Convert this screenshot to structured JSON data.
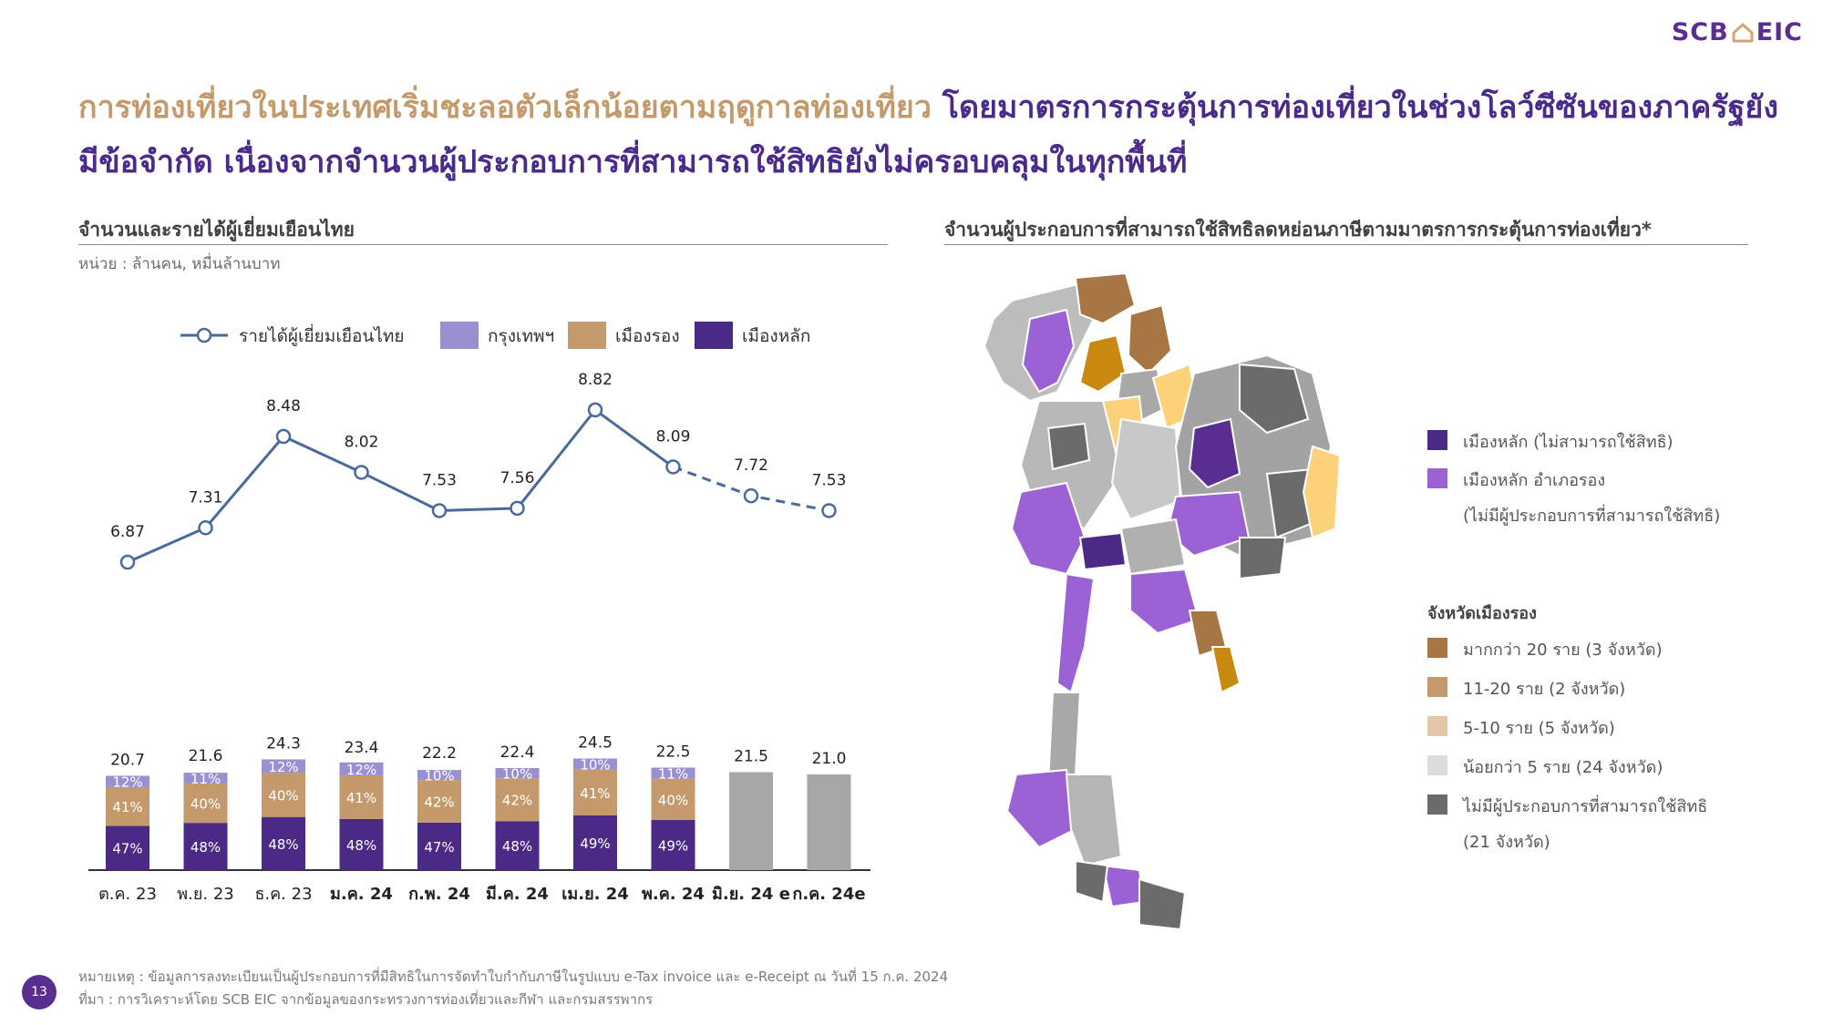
{
  "brand": {
    "logo_text_left": "SCB",
    "logo_text_right": "EIC"
  },
  "headline": {
    "part1": "การท่องเที่ยวในประเทศเริ่มชะลอตัวเล็กน้อยตามฤดูกาลท่องเที่ยว",
    "part2": "โดยมาตรการกระตุ้นการท่องเที่ยวในช่วงโลว์ซีซันของภาครัฐยังมีข้อจำกัด เนื่องจากจำนวนผู้ประกอบการที่สามารถใช้สิทธิยังไม่ครอบคลุมในทุกพื้นที่"
  },
  "left_panel": {
    "title": "จำนวนและรายได้ผู้เยี่ยมเยือนไทย",
    "unit": "หน่วย : ล้านคน, หมื่นล้านบาท"
  },
  "right_panel": {
    "title": "จำนวนผู้ประกอบการที่สามารถใช้สิทธิลดหย่อนภาษีตามมาตรการกระตุ้นการท่องเที่ยว*"
  },
  "chart_data": {
    "type": "bar",
    "categories": [
      "ต.ค. 23",
      "พ.ย. 23",
      "ธ.ค. 23",
      "ม.ค. 24",
      "ก.พ. 24",
      "มี.ค. 24",
      "เม.ย. 24",
      "พ.ค. 24",
      "มิ.ย. 24 e",
      "ก.ค. 24e"
    ],
    "bold_categories": [
      3,
      4,
      5,
      6,
      7,
      8,
      9
    ],
    "totals": [
      20.7,
      21.6,
      24.3,
      23.4,
      22.2,
      22.4,
      24.5,
      22.5,
      21.5,
      21.0
    ],
    "total_labels": [
      "20.7",
      "21.6",
      "24.3",
      "23.4",
      "22.2",
      "22.4",
      "24.5",
      "22.5",
      "21.5",
      "21.0"
    ],
    "series": [
      {
        "name": "เมืองหลัก",
        "color": "#4b2a85",
        "shares": [
          47,
          48,
          48,
          48,
          47,
          48,
          49,
          49,
          null,
          null
        ]
      },
      {
        "name": "เมืองรอง",
        "color": "#c49a6c",
        "shares": [
          41,
          40,
          40,
          41,
          42,
          42,
          41,
          40,
          null,
          null
        ]
      },
      {
        "name": "กรุงเทพฯ",
        "color": "#9a8fd0",
        "shares": [
          12,
          11,
          12,
          12,
          10,
          10,
          10,
          11,
          null,
          null
        ]
      }
    ],
    "estimate_color": "#a6a6a6",
    "line": {
      "name": "รายได้ผู้เยี่ยมเยือนไทย",
      "values": [
        6.87,
        7.31,
        8.48,
        8.02,
        7.53,
        7.56,
        8.82,
        8.09,
        7.72,
        7.53
      ],
      "labels": [
        "6.87",
        "7.31",
        "8.48",
        "8.02",
        "7.53",
        "7.56",
        "8.82",
        "8.09",
        "7.72",
        "7.53"
      ],
      "estimate_from_index": 7,
      "color": "#4a6a9c"
    },
    "legend_order": [
      "รายได้ผู้เยี่ยมเยือนไทย",
      "กรุงเทพฯ",
      "เมืองรอง",
      "เมืองหลัก"
    ]
  },
  "map_legend": {
    "main_cities": [
      {
        "label": "เมืองหลัก (ไม่สามารถใช้สิทธิ)",
        "color": "#4b2a85"
      },
      {
        "label": "เมืองหลัก อำเภอรอง",
        "label2": "(ไม่มีผู้ประกอบการที่สามารถใช้สิทธิ)",
        "color": "#9b62d6"
      }
    ],
    "secondary_heading": "จังหวัดเมืองรอง",
    "secondary": [
      {
        "label": "มากกว่า 20 ราย (3 จังหวัด)",
        "color": "#a67745"
      },
      {
        "label": "11-20 ราย (2 จังหวัด)",
        "color": "#c49a6c"
      },
      {
        "label": "5-10 ราย (5 จังหวัด)",
        "color": "#e2c7a8"
      },
      {
        "label": "น้อยกว่า 5 ราย (24 จังหวัด)",
        "color": "#dcdcdc"
      },
      {
        "label": "ไม่มีผู้ประกอบการที่สามารถใช้สิทธิ",
        "label2": "(21 จังหวัด)",
        "color": "#6b6b6b"
      }
    ]
  },
  "footnote": {
    "note": "หมายเหตุ : ข้อมูลการลงทะเบียนเป็นผู้ประกอบการที่มีสิทธิในการจัดทำใบกำกับภาษีในรูปแบบ e-Tax invoice และ e-Receipt ณ วันที่ 15 ก.ค. 2024",
    "source": "ที่มา : การวิเคราะห์โดย SCB EIC จากข้อมูลของกระทรวงการท่องเที่ยวและกีฬา และกรมสรรพากร"
  },
  "page_number": "13"
}
